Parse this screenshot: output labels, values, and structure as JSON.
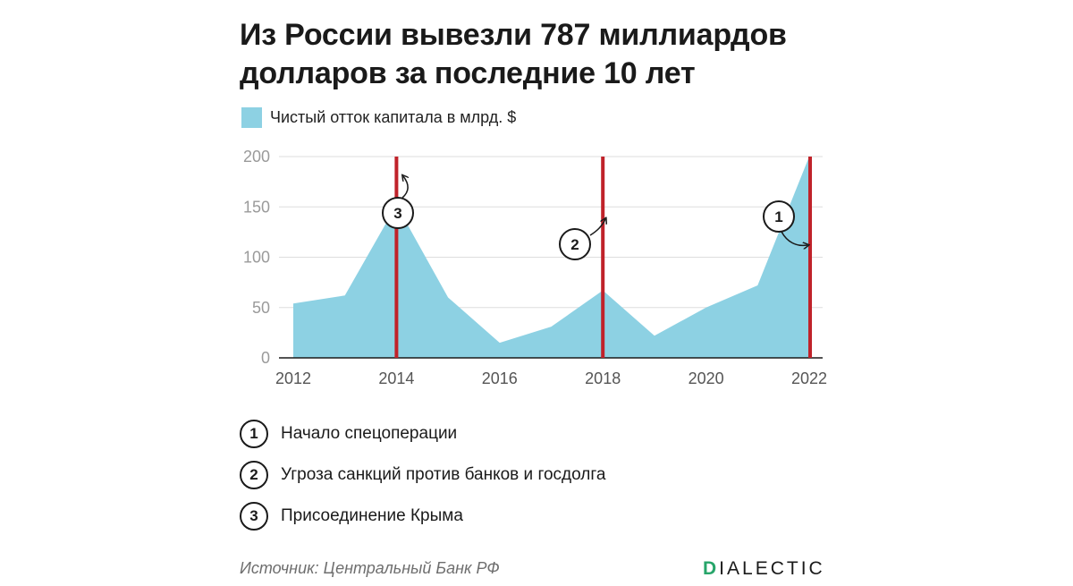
{
  "title": {
    "line1": "Из России вывезли 787 миллиардов",
    "line2": "долларов за последние 10 лет"
  },
  "legend": {
    "label": "Чистый отток капитала в млрд. $",
    "color": "#8dd1e3"
  },
  "chart_data": {
    "type": "area",
    "x": [
      2012,
      2013,
      2014,
      2015,
      2016,
      2017,
      2018,
      2019,
      2020,
      2021,
      2022
    ],
    "series": [
      {
        "name": "Чистый отток капитала в млрд. $",
        "values": [
          54,
          62,
          152,
          60,
          15,
          31,
          67,
          22,
          50,
          72,
          200
        ]
      }
    ],
    "xlim": [
      2012,
      2022
    ],
    "ylim": [
      0,
      200
    ],
    "x_ticks": [
      "2012",
      "2014",
      "2016",
      "2018",
      "2020",
      "2022"
    ],
    "y_ticks": [
      "0",
      "50",
      "100",
      "150",
      "200"
    ],
    "grid": true,
    "fill_color": "#8dd1e3",
    "marker_color": "#c0222a",
    "markers": [
      {
        "year": 2014,
        "label": "3"
      },
      {
        "year": 2018,
        "label": "2"
      },
      {
        "year": 2022,
        "label": "1"
      }
    ]
  },
  "notes": [
    {
      "num": "1",
      "text": "Начало спецоперации"
    },
    {
      "num": "2",
      "text": "Угроза санкций против банков и госдолга"
    },
    {
      "num": "3",
      "text": "Присоединение Крыма"
    }
  ],
  "source": "Источник: Центральный Банк РФ",
  "brand": {
    "first_letter": "D",
    "rest": "IALECTIC",
    "accent_color": "#27a56a"
  }
}
